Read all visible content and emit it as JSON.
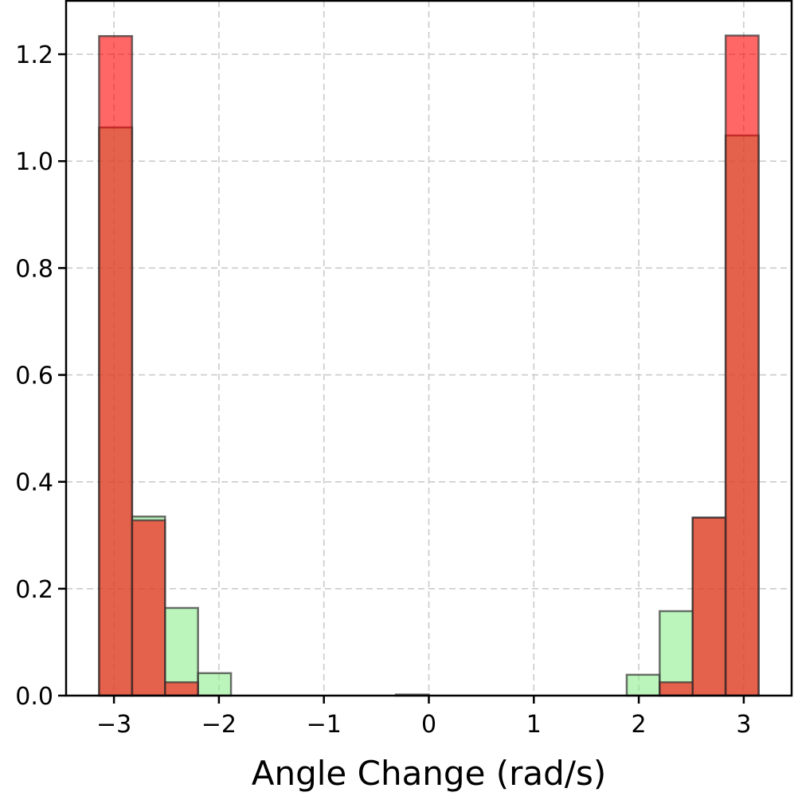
{
  "chart_data": {
    "type": "bar",
    "subtype": "overlapping-histogram",
    "title": "",
    "xlabel": "Angle Change (rad/s)",
    "ylabel": "",
    "xlim": [
      -3.456,
      3.456
    ],
    "ylim": [
      0,
      1.3
    ],
    "grid": true,
    "bin_range": [
      -3.14159,
      3.14159
    ],
    "bin_count": 20,
    "xticks": [
      -3,
      -2,
      -1,
      0,
      1,
      2,
      3
    ],
    "xtick_labels": [
      "−3",
      "−2",
      "−1",
      "0",
      "1",
      "2",
      "3"
    ],
    "yticks": [
      0,
      0.2,
      0.4,
      0.6,
      0.8,
      1.0,
      1.2
    ],
    "ytick_labels": [
      "0.0",
      "0.2",
      "0.4",
      "0.6",
      "0.8",
      "1.0",
      "1.2"
    ],
    "series": [
      {
        "color": "#90ee90",
        "alpha": 0.6,
        "values": [
          1.063,
          0.335,
          0.164,
          0.042,
          0,
          0,
          0,
          0,
          0,
          0.002,
          0,
          0,
          0,
          0,
          0,
          0,
          0.039,
          0.158,
          0.333,
          1.048
        ]
      },
      {
        "color": "#ff0000",
        "alpha": 0.6,
        "values": [
          1.234,
          0.328,
          0.025,
          0,
          0,
          0,
          0,
          0,
          0,
          0,
          0,
          0,
          0,
          0,
          0,
          0,
          0,
          0.025,
          0.333,
          1.235
        ]
      }
    ],
    "edge_color": "#333333"
  }
}
